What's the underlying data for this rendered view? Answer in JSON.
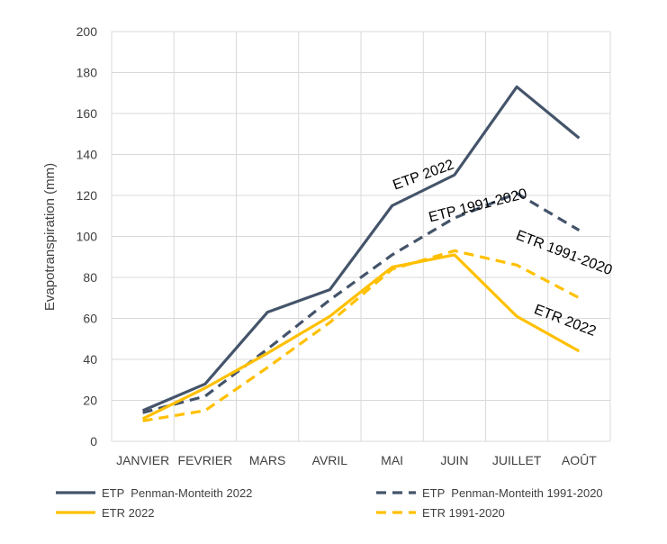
{
  "chart_data": {
    "type": "line",
    "title": "",
    "xlabel": "",
    "ylabel": "Evapotranspiration (mm)",
    "ylim": [
      0,
      200
    ],
    "yticks": [
      0,
      20,
      40,
      60,
      80,
      100,
      120,
      140,
      160,
      180,
      200
    ],
    "grid": true,
    "legend_position": "bottom",
    "categories": [
      "JANVIER",
      "FEVRIER",
      "MARS",
      "AVRIL",
      "MAI",
      "JUIN",
      "JUILLET",
      "AOÛT"
    ],
    "series": [
      {
        "name": "ETP  Penman-Monteith 2022",
        "color": "#44546a",
        "dash": "solid",
        "values": [
          15,
          28,
          63,
          74,
          115,
          130,
          173,
          148
        ]
      },
      {
        "name": "ETP  Penman-Monteith 1991-2020",
        "color": "#44546a",
        "dash": "dashed",
        "values": [
          14,
          22,
          45,
          69,
          91,
          109,
          121,
          103
        ]
      },
      {
        "name": "ETR 2022",
        "color": "#ffc000",
        "dash": "solid",
        "values": [
          11,
          26,
          43,
          61,
          85,
          91,
          61,
          44
        ]
      },
      {
        "name": "ETR 1991-2020",
        "color": "#ffc000",
        "dash": "dashed",
        "values": [
          10,
          15,
          36,
          58,
          84,
          93,
          86,
          70
        ]
      }
    ],
    "annotations": [
      {
        "text": "ETP 2022",
        "near": "MAI-JUIN",
        "value": 128,
        "angle": -20
      },
      {
        "text": "ETP 1991-2020",
        "near": "JUIN-JUILLET",
        "value": 113,
        "angle": -14
      },
      {
        "text": "ETR 1991-2020",
        "near": "JUILLET-AOÛT",
        "value": 90,
        "angle": 21
      },
      {
        "text": "ETR 2022",
        "near": "JUILLET-AOÛT",
        "value": 57,
        "angle": 21
      }
    ]
  }
}
